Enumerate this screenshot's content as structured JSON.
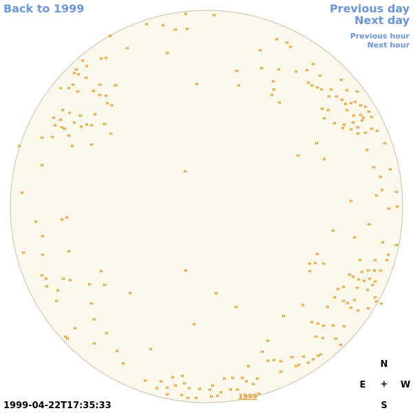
{
  "nav": {
    "back_label": "Back to 1999",
    "previous_day": "Previous day",
    "next_day": "Next day",
    "previous_hour": "Previous hour",
    "next_hour": "Next hour"
  },
  "timestamp": "1999-04-22T17:35:33",
  "compass": {
    "n": "N",
    "e": "E",
    "w": "W",
    "s": "S",
    "center": "+"
  },
  "year_label": "1999",
  "colors": {
    "link": "#6a95e0",
    "sky": "#fdf8ec",
    "sky_border": "#c9bfa8",
    "marker": "#e8900a"
  },
  "icons": {
    "star_marker": "star-marker-icon"
  }
}
